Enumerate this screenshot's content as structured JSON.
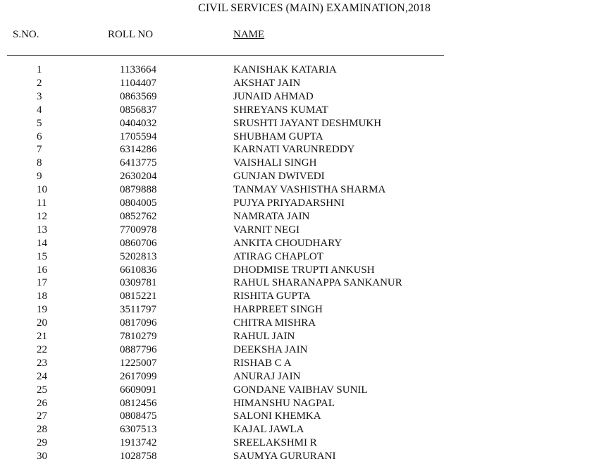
{
  "title": "CIVIL SERVICES (MAIN) EXAMINATION,2018",
  "headers": {
    "sno": "S.NO.",
    "roll": "ROLL NO",
    "name": "NAME"
  },
  "rows": [
    {
      "sno": "1",
      "roll": "1133664",
      "name": "KANISHAK KATARIA"
    },
    {
      "sno": "2",
      "roll": "1104407",
      "name": "AKSHAT JAIN"
    },
    {
      "sno": "3",
      "roll": "0863569",
      "name": "JUNAID AHMAD"
    },
    {
      "sno": "4",
      "roll": "0856837",
      "name": "SHREYANS KUMAT"
    },
    {
      "sno": "5",
      "roll": "0404032",
      "name": "SRUSHTI JAYANT DESHMUKH"
    },
    {
      "sno": "6",
      "roll": "1705594",
      "name": "SHUBHAM GUPTA"
    },
    {
      "sno": "7",
      "roll": "6314286",
      "name": "KARNATI VARUNREDDY"
    },
    {
      "sno": "8",
      "roll": "6413775",
      "name": "VAISHALI SINGH"
    },
    {
      "sno": "9",
      "roll": "2630204",
      "name": "GUNJAN DWIVEDI"
    },
    {
      "sno": "10",
      "roll": "0879888",
      "name": "TANMAY VASHISTHA SHARMA"
    },
    {
      "sno": "11",
      "roll": "0804005",
      "name": "PUJYA PRIYADARSHNI"
    },
    {
      "sno": "12",
      "roll": "0852762",
      "name": "NAMRATA JAIN"
    },
    {
      "sno": "13",
      "roll": "7700978",
      "name": "VARNIT NEGI"
    },
    {
      "sno": "14",
      "roll": "0860706",
      "name": "ANKITA CHOUDHARY"
    },
    {
      "sno": "15",
      "roll": "5202813",
      "name": "ATIRAG CHAPLOT"
    },
    {
      "sno": "16",
      "roll": "6610836",
      "name": "DHODMISE TRUPTI ANKUSH"
    },
    {
      "sno": "17",
      "roll": "0309781",
      "name": "RAHUL SHARANAPPA SANKANUR"
    },
    {
      "sno": "18",
      "roll": "0815221",
      "name": "RISHITA GUPTA"
    },
    {
      "sno": "19",
      "roll": "3511797",
      "name": "HARPREET SINGH"
    },
    {
      "sno": "20",
      "roll": "0817096",
      "name": "CHITRA MISHRA"
    },
    {
      "sno": "21",
      "roll": "7810279",
      "name": "RAHUL JAIN"
    },
    {
      "sno": "22",
      "roll": "0887796",
      "name": "DEEKSHA JAIN"
    },
    {
      "sno": "23",
      "roll": "1225007",
      "name": "RISHAB C A"
    },
    {
      "sno": "24",
      "roll": "2617099",
      "name": "ANURAJ JAIN"
    },
    {
      "sno": "25",
      "roll": "6609091",
      "name": "GONDANE VAIBHAV SUNIL"
    },
    {
      "sno": "26",
      "roll": "0812456",
      "name": "HIMANSHU NAGPAL"
    },
    {
      "sno": "27",
      "roll": "0808475",
      "name": "SALONI KHEMKA"
    },
    {
      "sno": "28",
      "roll": "6307513",
      "name": "KAJAL JAWLA"
    },
    {
      "sno": "29",
      "roll": "1913742",
      "name": "SREELAKSHMI R"
    },
    {
      "sno": "30",
      "roll": "1028758",
      "name": "SAUMYA GURURANI"
    }
  ]
}
